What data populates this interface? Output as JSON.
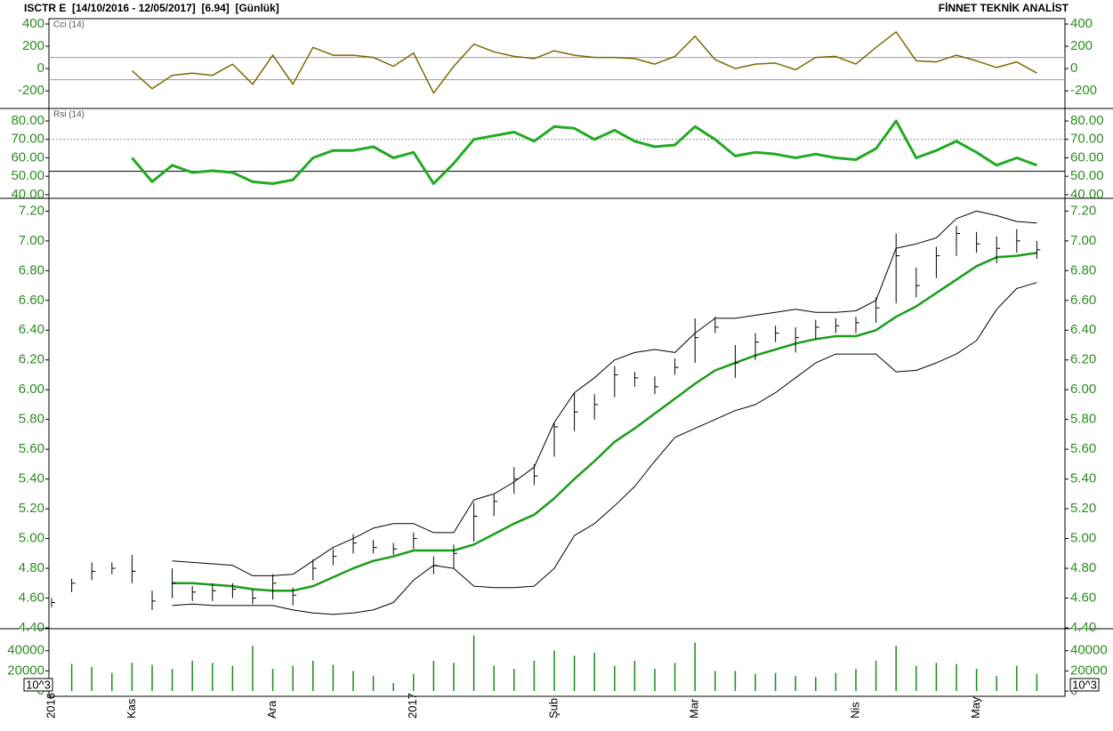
{
  "title": "ISCTR E  [14/10/2016 - 12/05/2017]  [6.94]  [Günlük]",
  "source": "FİNNET TEKNİK ANALİST",
  "chart_data": [
    {
      "type": "line",
      "label": "Cci (14)",
      "ylim": [
        -350,
        440
      ],
      "yticks": [
        400,
        200,
        0,
        -200
      ],
      "ref_lines": [
        {
          "value": 100,
          "style": "solid"
        },
        {
          "value": -100,
          "style": "solid"
        }
      ],
      "series": [
        {
          "color": "#7a6a00",
          "width": 1.5,
          "values": [
            null,
            null,
            null,
            null,
            -20,
            -180,
            -60,
            -40,
            -60,
            40,
            -140,
            120,
            -140,
            190,
            120,
            120,
            100,
            20,
            140,
            -220,
            20,
            220,
            150,
            110,
            90,
            160,
            120,
            100,
            100,
            90,
            40,
            110,
            290,
            80,
            0,
            40,
            50,
            -10,
            100,
            110,
            40,
            190,
            330,
            70,
            60,
            120,
            70,
            10,
            60,
            -40
          ]
        }
      ]
    },
    {
      "type": "line",
      "label": "Rsi (14)",
      "ylim": [
        38.5,
        86.3
      ],
      "yticks": [
        {
          "value": 80,
          "label": "80.00"
        },
        {
          "value": 70,
          "label": "70.00"
        },
        {
          "value": 60,
          "label": "60.00"
        },
        {
          "value": 50,
          "label": "50.00"
        },
        {
          "value": 40,
          "label": "40.00"
        }
      ],
      "ref_lines": [
        {
          "value": 70,
          "style": "dotted"
        },
        {
          "value": 52.7,
          "style": "solid"
        }
      ],
      "series": [
        {
          "color": "#22aa22",
          "width": 3,
          "values": [
            null,
            null,
            null,
            null,
            60,
            47,
            56,
            52,
            53,
            52,
            47,
            46,
            48,
            60,
            64,
            64,
            66,
            60,
            63,
            46,
            57,
            70,
            72,
            74,
            69,
            77,
            76,
            70,
            75,
            69,
            66,
            67,
            77,
            70,
            61,
            63,
            62,
            60,
            62,
            60,
            59,
            65,
            80,
            60,
            64,
            69,
            63,
            56,
            60,
            56
          ]
        }
      ]
    },
    {
      "type": "hlc",
      "ylim": [
        4.4,
        7.28
      ],
      "yticks": [
        {
          "value": 7.2,
          "label": "7.20"
        },
        {
          "value": 7.0,
          "label": "7.00"
        },
        {
          "value": 6.8,
          "label": "6.80"
        },
        {
          "value": 6.6,
          "label": "6.60"
        },
        {
          "value": 6.4,
          "label": "6.40"
        },
        {
          "value": 6.2,
          "label": "6.20"
        },
        {
          "value": 6.0,
          "label": "6.00"
        },
        {
          "value": 5.8,
          "label": "5.80"
        },
        {
          "value": 5.6,
          "label": "5.60"
        },
        {
          "value": 5.4,
          "label": "5.40"
        },
        {
          "value": 5.2,
          "label": "5.20"
        },
        {
          "value": 5.0,
          "label": "5.00"
        },
        {
          "value": 4.8,
          "label": "4.80"
        },
        {
          "value": 4.6,
          "label": "4.60"
        },
        {
          "value": 4.4,
          "label": "4.40"
        }
      ],
      "color": "#000000",
      "high": [
        4.6,
        4.73,
        4.84,
        4.84,
        4.89,
        4.65,
        4.8,
        4.68,
        4.7,
        4.7,
        4.66,
        4.76,
        4.67,
        4.86,
        4.93,
        5.03,
        4.99,
        4.97,
        5.04,
        4.88,
        4.96,
        5.24,
        5.3,
        5.48,
        5.5,
        5.78,
        5.98,
        5.97,
        6.16,
        6.12,
        6.09,
        6.21,
        6.48,
        6.49,
        6.3,
        6.38,
        6.43,
        6.42,
        6.47,
        6.48,
        6.49,
        6.62,
        7.05,
        6.82,
        6.96,
        7.1,
        7.06,
        7.03,
        7.08,
        7.0
      ],
      "low": [
        4.54,
        4.64,
        4.72,
        4.76,
        4.7,
        4.52,
        4.6,
        4.58,
        4.58,
        4.6,
        4.56,
        4.59,
        4.55,
        4.72,
        4.82,
        4.9,
        4.9,
        4.89,
        4.93,
        4.76,
        4.8,
        4.98,
        5.15,
        5.3,
        5.36,
        5.55,
        5.72,
        5.8,
        5.95,
        6.02,
        5.97,
        6.1,
        6.18,
        6.38,
        6.08,
        6.2,
        6.32,
        6.25,
        6.34,
        6.38,
        6.38,
        6.45,
        6.58,
        6.62,
        6.75,
        6.9,
        6.92,
        6.85,
        6.92,
        6.88
      ],
      "close": [
        4.57,
        4.7,
        4.78,
        4.8,
        4.78,
        4.58,
        4.7,
        4.64,
        4.65,
        4.66,
        4.6,
        4.7,
        4.62,
        4.8,
        4.88,
        4.97,
        4.94,
        4.93,
        5.0,
        4.82,
        4.9,
        5.15,
        5.25,
        5.4,
        5.42,
        5.75,
        5.85,
        5.9,
        6.1,
        6.08,
        6.02,
        6.15,
        6.35,
        6.42,
        6.18,
        6.32,
        6.38,
        6.35,
        6.42,
        6.43,
        6.45,
        6.55,
        6.9,
        6.7,
        6.9,
        7.05,
        6.98,
        6.95,
        7.0,
        6.94
      ],
      "overlays": [
        {
          "color": "#1a9c1a",
          "width": 2.5,
          "values": [
            null,
            null,
            null,
            null,
            null,
            null,
            4.7,
            4.7,
            4.69,
            4.68,
            4.66,
            4.65,
            4.65,
            4.68,
            4.74,
            4.8,
            4.85,
            4.88,
            4.92,
            4.92,
            4.92,
            4.96,
            5.03,
            5.1,
            5.16,
            5.27,
            5.4,
            5.52,
            5.65,
            5.74,
            5.84,
            5.94,
            6.04,
            6.13,
            6.18,
            6.23,
            6.27,
            6.31,
            6.34,
            6.36,
            6.36,
            6.4,
            6.49,
            6.56,
            6.65,
            6.74,
            6.83,
            6.89,
            6.9,
            6.92
          ]
        },
        {
          "color": "#000000",
          "width": 1,
          "values": [
            null,
            null,
            null,
            null,
            null,
            null,
            4.85,
            4.84,
            4.83,
            4.82,
            4.75,
            4.75,
            4.76,
            4.85,
            4.94,
            5.0,
            5.07,
            5.1,
            5.1,
            5.04,
            5.04,
            5.26,
            5.3,
            5.38,
            5.48,
            5.78,
            5.98,
            6.08,
            6.2,
            6.25,
            6.27,
            6.25,
            6.38,
            6.48,
            6.48,
            6.5,
            6.52,
            6.54,
            6.52,
            6.52,
            6.53,
            6.6,
            6.95,
            6.98,
            7.02,
            7.15,
            7.2,
            7.17,
            7.13,
            7.12
          ]
        },
        {
          "color": "#000000",
          "width": 1,
          "values": [
            null,
            null,
            null,
            null,
            null,
            null,
            4.55,
            4.56,
            4.55,
            4.55,
            4.55,
            4.55,
            4.52,
            4.5,
            4.49,
            4.5,
            4.52,
            4.57,
            4.72,
            4.82,
            4.8,
            4.68,
            4.67,
            4.67,
            4.68,
            4.8,
            5.02,
            5.1,
            5.22,
            5.35,
            5.52,
            5.68,
            5.74,
            5.8,
            5.86,
            5.9,
            5.98,
            6.08,
            6.18,
            6.24,
            6.24,
            6.24,
            6.12,
            6.13,
            6.18,
            6.24,
            6.33,
            6.54,
            6.68,
            6.72
          ]
        }
      ]
    },
    {
      "type": "bar",
      "unit_label": "10^3",
      "ylim": [
        -4300,
        60900
      ],
      "yticks": [
        40000,
        20000,
        0
      ],
      "color": "#1a8a1a",
      "values": [
        12000,
        27000,
        24000,
        18000,
        28000,
        26000,
        22000,
        30000,
        28000,
        25000,
        45000,
        22000,
        25000,
        30000,
        26000,
        20000,
        15000,
        8000,
        17000,
        30000,
        28000,
        55000,
        25000,
        22000,
        30000,
        40000,
        35000,
        38000,
        25000,
        30000,
        22000,
        28000,
        48000,
        20000,
        20000,
        17000,
        18000,
        15000,
        14000,
        18000,
        22000,
        30000,
        45000,
        25000,
        28000,
        27000,
        22000,
        15000,
        25000,
        17000
      ],
      "categories": [
        "2016",
        null,
        null,
        null,
        "Kas",
        null,
        null,
        null,
        null,
        null,
        null,
        "Ara",
        null,
        null,
        null,
        null,
        null,
        null,
        "2017",
        null,
        null,
        null,
        null,
        null,
        null,
        "Şub",
        null,
        null,
        null,
        null,
        null,
        null,
        "Mar",
        null,
        null,
        null,
        null,
        null,
        null,
        null,
        "Nis",
        null,
        null,
        null,
        null,
        null,
        "May",
        null,
        null,
        null
      ]
    }
  ]
}
